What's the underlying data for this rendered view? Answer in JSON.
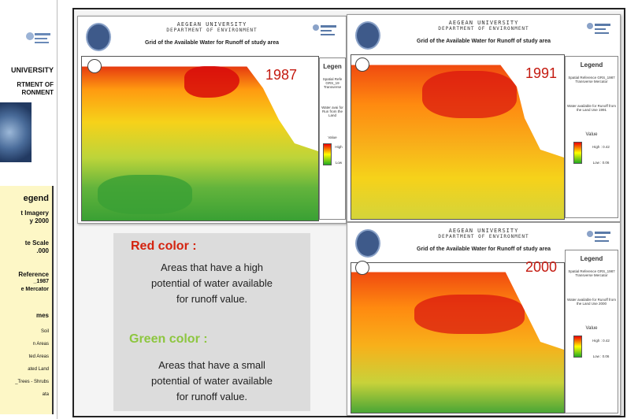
{
  "left_panel": {
    "university": "UNIVERSITY",
    "dept_line1": "RTMENT OF",
    "dept_line2": "RONMENT",
    "legend_title": "egend",
    "imagery_line1": "t Imagery",
    "imagery_line2": "y 2000",
    "scale_line1": "te Scale",
    "scale_line2": ".000",
    "ref_line1": "Reference",
    "ref_line2": "_1987",
    "ref_line3": "e Mercator",
    "themes_title": "mes",
    "themes": [
      "Soil",
      "n Areas",
      "ted Areas",
      "ated Land",
      "_Trees - Shrubs",
      "ata"
    ]
  },
  "header": {
    "university": "AEGEAN UNIVERSITY",
    "department": "DEPARTMENT OF ENVIRONMENT",
    "title": "Grid of the Available Water for Runoff of study area"
  },
  "maps": [
    {
      "year": "1987",
      "legend_title": "Legen",
      "spatial_ref": "Spatial Refe GRS_19 Transverse",
      "water_note": "Water avai for Run from the Land",
      "value_label": "Value",
      "high": "High",
      "low": "Low"
    },
    {
      "year": "1991",
      "legend_title": "Legend",
      "spatial_ref": "Spatial Reference GRS_1987 Transverse Mercator",
      "water_note": "Water available for Runoff from the Land Use 1991",
      "value_label": "Value",
      "high": "High : 0.42",
      "low": "Low : 0.06"
    },
    {
      "year": "2000",
      "legend_title": "Legend",
      "spatial_ref": "Spatial Reference GRS_1987 Transverse Mercator",
      "water_note": "Water available for Runoff from the Land Use 2000",
      "value_label": "Value",
      "high": "High : 0.42",
      "low": "Low : 0.06"
    }
  ],
  "description": {
    "red_heading": "Red color :",
    "red_text_l1": "Areas that have a high",
    "red_text_l2": "potential of water available",
    "red_text_l3": "for runoff value.",
    "green_heading": "Green color :",
    "green_text_l1": "Areas that have a small",
    "green_text_l2": "potential of water available",
    "green_text_l3": "for runoff value."
  },
  "colors": {
    "high": "#e00000",
    "mid": "#ffd000",
    "low": "#2aa02a",
    "red_heading": "#d4230f",
    "green_heading": "#8dc63f"
  }
}
